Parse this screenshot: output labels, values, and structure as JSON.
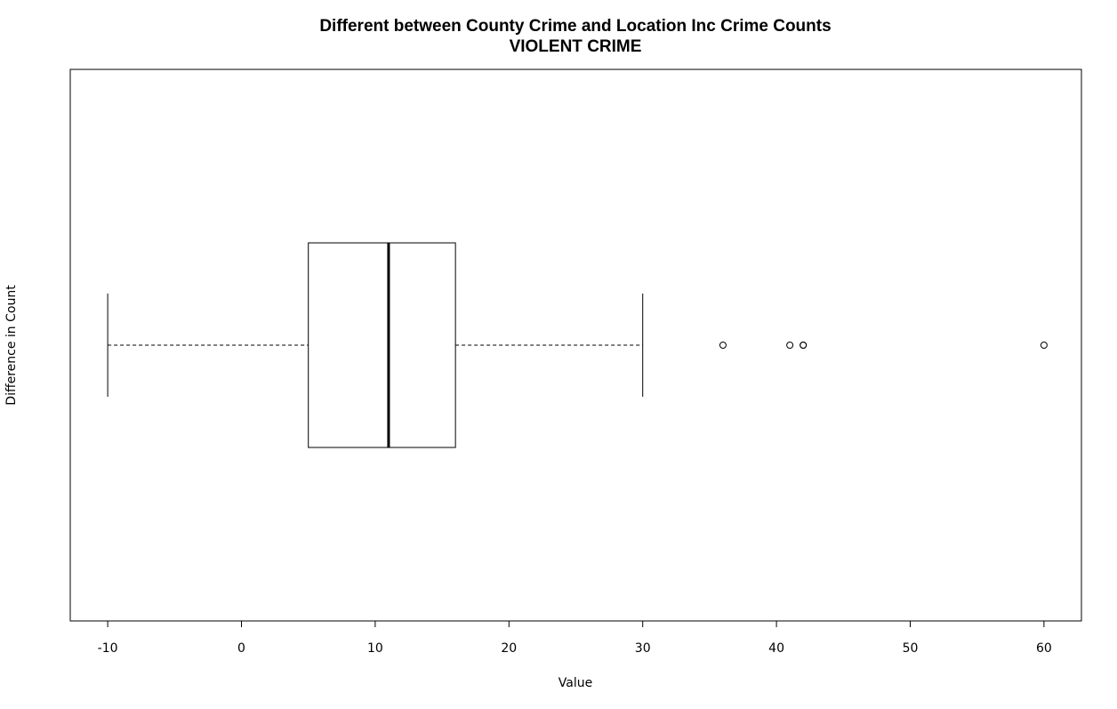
{
  "chart_data": {
    "type": "boxplot",
    "orientation": "horizontal",
    "title": "Different between County Crime and Location Inc Crime Counts",
    "subtitle": "VIOLENT CRIME",
    "xlabel": "Value",
    "ylabel": "Difference in Count",
    "xlim": [
      -12.8,
      62.8
    ],
    "xticks": [
      -10,
      0,
      10,
      20,
      30,
      40,
      50,
      60
    ],
    "xtick_labels": [
      "-10",
      "0",
      "10",
      "20",
      "30",
      "40",
      "50",
      "60"
    ],
    "grid": false,
    "box": {
      "whisker_low": -10,
      "q1": 5,
      "median": 11,
      "q3": 16,
      "whisker_high": 30
    },
    "outliers": [
      36,
      41,
      42,
      42,
      60
    ]
  }
}
